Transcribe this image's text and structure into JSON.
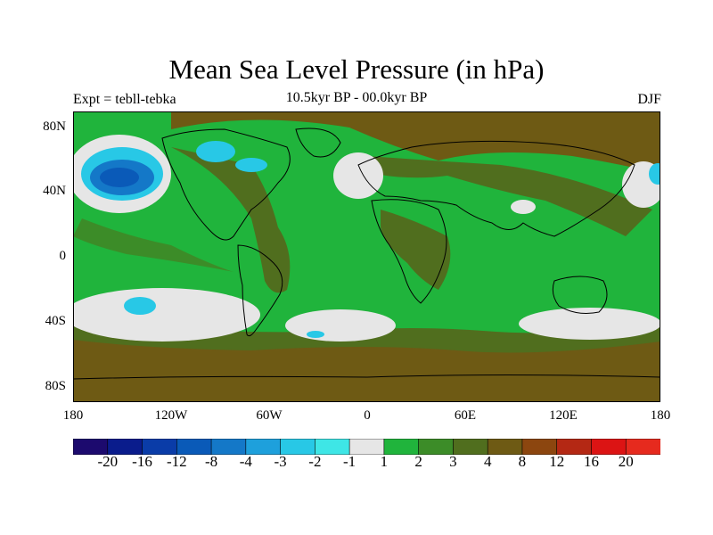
{
  "title": "Mean Sea Level Pressure (in hPa)",
  "left_string": "Expt = tebll-tebka",
  "center_string": "10.5kyr BP - 00.0kyr BP",
  "right_string": "DJF",
  "lat_labels": [
    "80N",
    "40N",
    "0",
    "40S",
    "80S"
  ],
  "lon_labels": [
    "180",
    "120W",
    "60W",
    "0",
    "60E",
    "120E",
    "180"
  ],
  "colorbar": {
    "labels": [
      "-20",
      "-16",
      "-12",
      "-8",
      "-4",
      "-3",
      "-2",
      "-1",
      "1",
      "2",
      "3",
      "4",
      "8",
      "12",
      "16",
      "20"
    ],
    "colors": [
      "#1c0a6e",
      "#0a1c8c",
      "#0a3ca8",
      "#0a5ab8",
      "#1478c8",
      "#1ea0dc",
      "#28c8e6",
      "#3ee6e6",
      "#e6e6e6",
      "#20b43c",
      "#3c8c28",
      "#506e1e",
      "#6e5a14",
      "#8c460f",
      "#b42814",
      "#dc1414",
      "#e62a1e"
    ]
  },
  "colors": {
    "green": "#20b43c",
    "olive": "#3c8c28",
    "dark_olive": "#506e1e",
    "brown": "#6e5a14",
    "grey": "#e6e6e6",
    "cyan": "#28c8e6",
    "blue": "#1478c8"
  }
}
